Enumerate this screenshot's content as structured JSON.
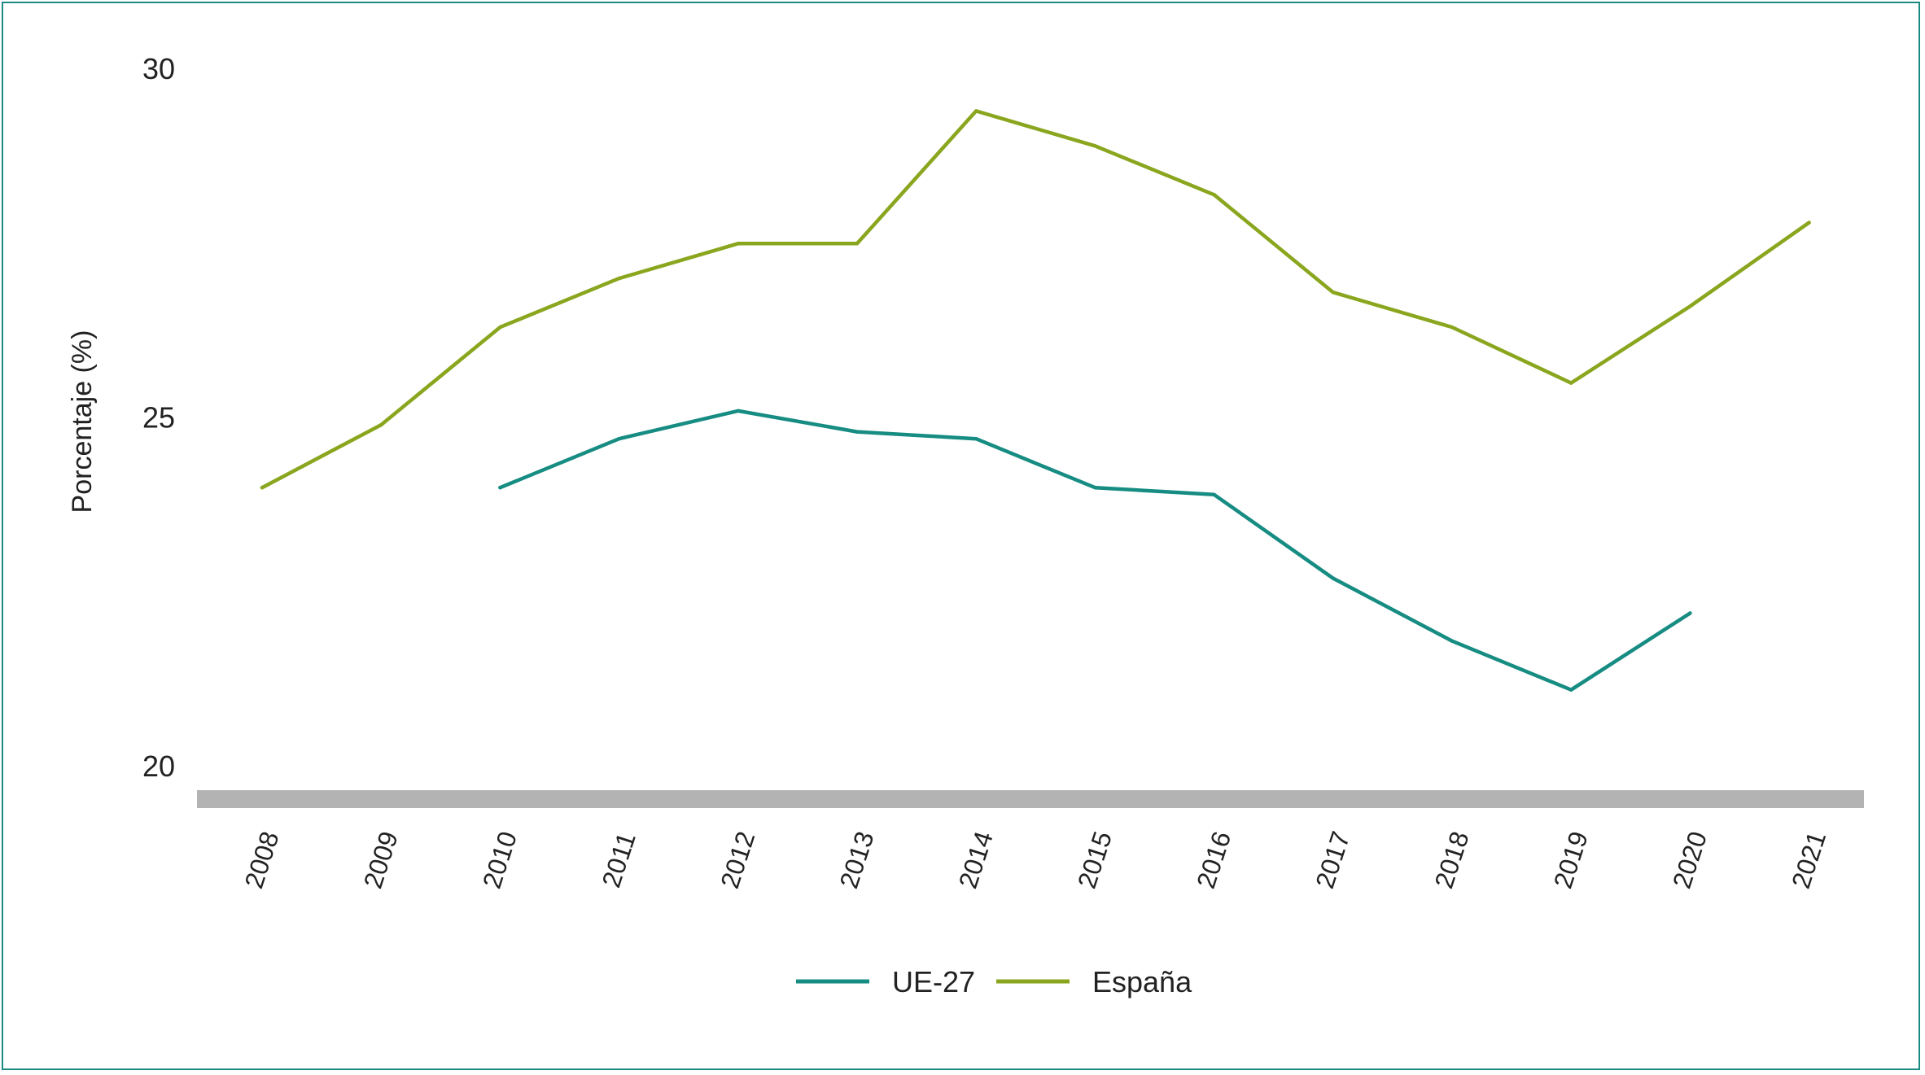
{
  "chart_data": {
    "type": "line",
    "ylabel": "Porcentaje (%)",
    "xlabel": "",
    "ylim": [
      20,
      30
    ],
    "yticks": [
      20,
      25,
      30
    ],
    "x": [
      "2008",
      "2009",
      "2010",
      "2011",
      "2012",
      "2013",
      "2014",
      "2015",
      "2016",
      "2017",
      "2018",
      "2019",
      "2020",
      "2021"
    ],
    "legend_position": "bottom-center",
    "series": [
      {
        "name": "UE-27",
        "color": "#168c82",
        "values": [
          null,
          null,
          24.0,
          24.7,
          25.1,
          24.8,
          24.7,
          24.0,
          23.9,
          22.7,
          21.8,
          21.1,
          22.2,
          null
        ]
      },
      {
        "name": "España",
        "color": "#8aa61e",
        "values": [
          24.0,
          24.9,
          26.3,
          27.0,
          27.5,
          27.5,
          29.4,
          28.9,
          28.2,
          26.8,
          26.3,
          25.5,
          26.6,
          27.8
        ]
      }
    ],
    "baseline_bar_color": "#b3b3b3"
  }
}
